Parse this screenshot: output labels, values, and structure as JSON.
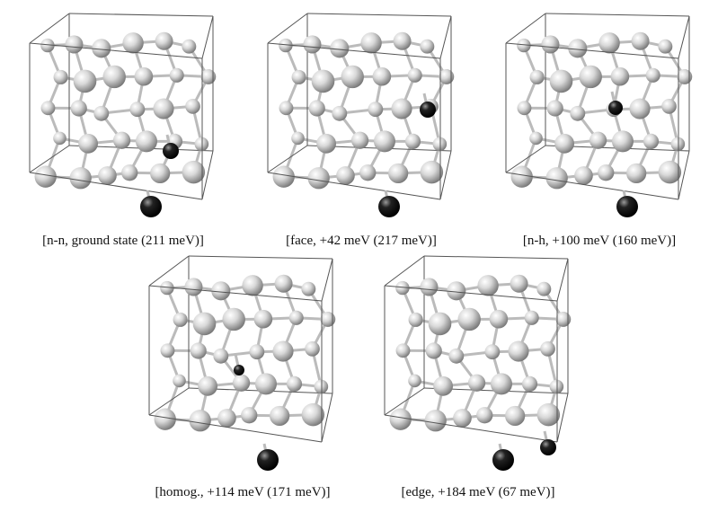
{
  "panels": [
    {
      "caption": "[n-n, ground state (211 meV)]"
    },
    {
      "caption": "[face, +42 meV (217 meV)]"
    },
    {
      "caption": "[n-h, +100 meV (160 meV)]"
    },
    {
      "caption": "[homog., +114 meV (171 meV)]"
    },
    {
      "caption": "[edge, +184 meV (67 meV)]"
    }
  ]
}
